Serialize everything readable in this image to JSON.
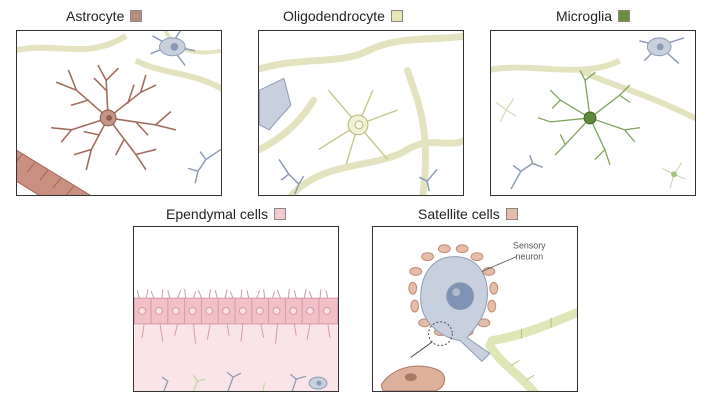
{
  "panels": {
    "astrocyte": {
      "label": "Astrocyte",
      "color": "#b98b7a"
    },
    "oligodendrocyte": {
      "label": "Oligodendrocyte",
      "color": "#e5e5b5"
    },
    "microglia": {
      "label": "Microglia",
      "color": "#6c8f3f"
    },
    "ependymal": {
      "label": "Ependymal cells",
      "color": "#f2c9cf"
    },
    "satellite": {
      "label": "Satellite cells",
      "color": "#e4bca8"
    }
  },
  "annotations": {
    "sensory_line1": "Sensory",
    "sensory_line2": "neuron"
  }
}
